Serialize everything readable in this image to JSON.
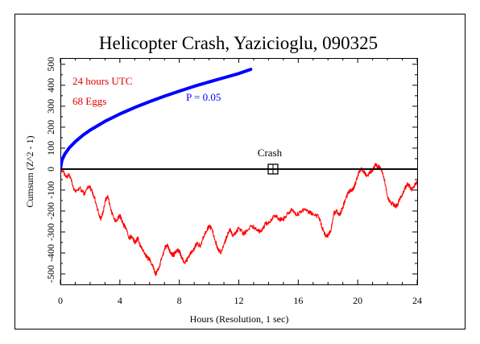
{
  "chart_data": {
    "type": "line",
    "title": "Helicopter Crash, Yazicioglu, 090325",
    "xlabel": "Hours (Resolution, 1 sec)",
    "ylabel": "Cumsum (Z^2 - 1)",
    "xlim": [
      0,
      24
    ],
    "ylim": [
      -550,
      530
    ],
    "x_ticks": [
      0,
      4,
      8,
      12,
      16,
      20,
      24
    ],
    "y_ticks": [
      -500,
      -400,
      -300,
      -200,
      -100,
      0,
      100,
      200,
      300,
      400,
      500
    ],
    "grid": false,
    "annotations": {
      "hours_text": "24 hours UTC",
      "eggs_text": "68 Eggs",
      "p_text": "P = 0.05",
      "event_label": "Crash",
      "event_hour": 14.3,
      "event_value": 0
    },
    "colors": {
      "data_series": "#ff0000",
      "probability_envelope": "#0000ff",
      "annotation_text": "#e00000",
      "axis": "#000000"
    },
    "series": [
      {
        "role": "cumulative-deviation",
        "x": [
          0,
          0.2,
          0.4,
          0.6,
          0.8,
          1.0,
          1.3,
          1.6,
          1.9,
          2.1,
          2.3,
          2.5,
          2.7,
          2.9,
          3.0,
          3.2,
          3.4,
          3.7,
          4.0,
          4.2,
          4.4,
          4.6,
          4.8,
          5.0,
          5.2,
          5.4,
          5.6,
          5.8,
          6.0,
          6.2,
          6.4,
          6.6,
          6.8,
          7.0,
          7.2,
          7.4,
          7.6,
          7.8,
          8.0,
          8.2,
          8.4,
          8.6,
          8.8,
          9.0,
          9.2,
          9.4,
          9.6,
          9.8,
          10.0,
          10.2,
          10.4,
          10.6,
          10.8,
          11.0,
          11.2,
          11.4,
          11.6,
          11.8,
          12.0,
          12.3,
          12.6,
          12.9,
          13.2,
          13.5,
          13.8,
          14.1,
          14.4,
          14.7,
          15.0,
          15.3,
          15.6,
          15.9,
          16.2,
          16.5,
          16.8,
          17.1,
          17.4,
          17.6,
          17.8,
          18.0,
          18.2,
          18.4,
          18.6,
          18.8,
          19.0,
          19.2,
          19.4,
          19.6,
          19.8,
          20.0,
          20.2,
          20.4,
          20.6,
          20.8,
          21.0,
          21.2,
          21.4,
          21.6,
          21.8,
          22.0,
          22.2,
          22.4,
          22.6,
          22.8,
          23.0,
          23.2,
          23.4,
          23.6,
          23.8,
          24.0
        ],
        "values": [
          0,
          -10,
          -40,
          -30,
          -70,
          -110,
          -90,
          -120,
          -80,
          -100,
          -140,
          -190,
          -240,
          -200,
          -150,
          -130,
          -200,
          -250,
          -220,
          -260,
          -280,
          -330,
          -320,
          -350,
          -330,
          -370,
          -390,
          -420,
          -430,
          -460,
          -500,
          -480,
          -430,
          -380,
          -360,
          -400,
          -410,
          -390,
          -390,
          -430,
          -450,
          -420,
          -400,
          -380,
          -350,
          -370,
          -330,
          -300,
          -270,
          -290,
          -340,
          -380,
          -400,
          -360,
          -320,
          -290,
          -320,
          -300,
          -280,
          -310,
          -290,
          -270,
          -290,
          -300,
          -260,
          -250,
          -220,
          -240,
          -240,
          -210,
          -190,
          -220,
          -200,
          -190,
          -210,
          -220,
          -230,
          -280,
          -310,
          -320,
          -290,
          -210,
          -200,
          -220,
          -180,
          -140,
          -110,
          -100,
          -80,
          -30,
          0,
          -10,
          -30,
          -20,
          0,
          20,
          10,
          0,
          -50,
          -130,
          -160,
          -170,
          -180,
          -150,
          -120,
          -90,
          -70,
          -100,
          -80,
          -60
        ]
      },
      {
        "role": "probability-envelope",
        "x": [
          0,
          0.1,
          0.3,
          0.6,
          1.0,
          1.5,
          2.0,
          3.0,
          4.0,
          5.0,
          6.0,
          7.0,
          8.0,
          9.0,
          10.0,
          11.0,
          12.0,
          12.8
        ],
        "values": [
          0,
          42,
          72,
          102,
          131,
          161,
          186,
          228,
          263,
          294,
          322,
          348,
          372,
          395,
          416,
          436,
          456,
          476
        ]
      }
    ]
  }
}
